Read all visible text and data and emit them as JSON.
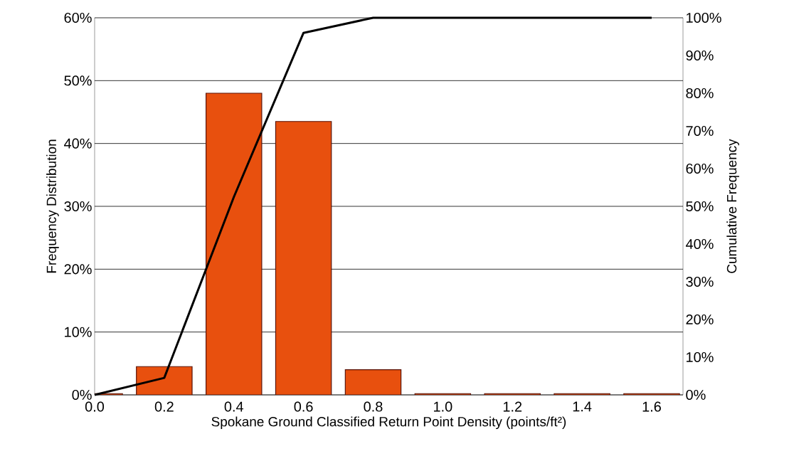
{
  "chart_data": {
    "type": "bar",
    "xlabel": "Spokane Ground Classified Return Point Density (points/ft²)",
    "ylabel": "Frequency Distribution",
    "y2label": "Cumulative Frequency",
    "x": [
      0,
      0.2,
      0.4,
      0.6,
      0.8,
      1.0,
      1.2,
      1.4,
      1.6
    ],
    "xlim": [
      0,
      1.69
    ],
    "xticks": [
      {
        "value": 0,
        "label": "0.0"
      },
      {
        "value": 0.2,
        "label": "0.2"
      },
      {
        "value": 0.4,
        "label": "0.4"
      },
      {
        "value": 0.6,
        "label": "0.6"
      },
      {
        "value": 0.8,
        "label": "0.8"
      },
      {
        "value": 1.0,
        "label": "1.0"
      },
      {
        "value": 1.2,
        "label": "1.2"
      },
      {
        "value": 1.4,
        "label": "1.4"
      },
      {
        "value": 1.6,
        "label": "1.6"
      }
    ],
    "ylim": [
      0,
      60
    ],
    "yticks": [
      {
        "value": 0,
        "label": "0%"
      },
      {
        "value": 10,
        "label": "10%"
      },
      {
        "value": 20,
        "label": "20%"
      },
      {
        "value": 30,
        "label": "30%"
      },
      {
        "value": 40,
        "label": "40%"
      },
      {
        "value": 50,
        "label": "50%"
      },
      {
        "value": 60,
        "label": "60%"
      }
    ],
    "y2lim": [
      0,
      100
    ],
    "y2ticks": [
      {
        "value": 0,
        "label": "0%"
      },
      {
        "value": 10,
        "label": "10%"
      },
      {
        "value": 20,
        "label": "20%"
      },
      {
        "value": 30,
        "label": "30%"
      },
      {
        "value": 40,
        "label": "40%"
      },
      {
        "value": 50,
        "label": "50%"
      },
      {
        "value": 60,
        "label": "60%"
      },
      {
        "value": 70,
        "label": "70%"
      },
      {
        "value": 80,
        "label": "80%"
      },
      {
        "value": 90,
        "label": "90%"
      },
      {
        "value": 100,
        "label": "100%"
      }
    ],
    "grid": "y",
    "marker": "none",
    "series": [
      {
        "color": "#e8500e",
        "values": [
          0.2,
          4.5,
          48,
          43.5,
          4,
          0.2,
          0.2,
          0.2,
          0.2
        ]
      },
      {
        "type": "line",
        "axis": "y2",
        "color": "#000000",
        "line_style": "solid",
        "values": [
          0,
          4.5,
          52.5,
          96,
          100,
          100,
          100,
          100,
          100
        ]
      }
    ]
  }
}
